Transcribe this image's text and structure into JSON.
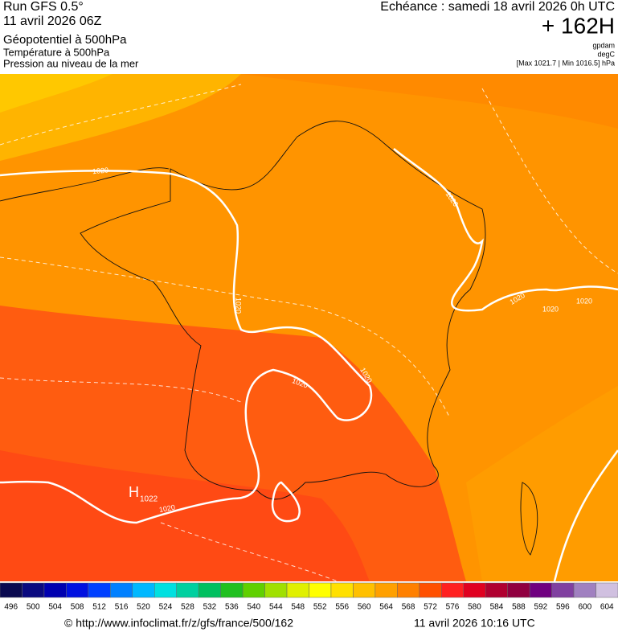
{
  "header": {
    "run": "Run GFS 0.5°",
    "date": "11 avril 2026 06Z",
    "field1": "Géopotentiel à 500hPa",
    "field2": "Température à 500hPa",
    "field3": "Pression au niveau de la mer",
    "forecast": "Echéance : samedi 18 avril 2026 0h UTC",
    "lead": "+ 162H",
    "unit1": "gpdam",
    "unit2": "degC",
    "pressure_range": "[Max 1021.7 | Min 1016.5] hPa"
  },
  "map": {
    "isobar_labels": [
      "1020",
      "1020",
      "1020",
      "1020",
      "1020",
      "1020",
      "1020",
      "1020",
      "1020"
    ],
    "high": {
      "symbol": "H",
      "value": "1022"
    }
  },
  "colorbar": {
    "ticks": [
      496,
      500,
      504,
      508,
      512,
      516,
      520,
      524,
      528,
      532,
      536,
      540,
      544,
      548,
      552,
      556,
      560,
      564,
      568,
      572,
      576,
      580,
      584,
      588,
      592,
      596,
      600,
      604
    ],
    "colors": [
      "#0a0a50",
      "#0a0a80",
      "#0000b0",
      "#0010e0",
      "#0040ff",
      "#0080ff",
      "#00b8ff",
      "#00e0e0",
      "#00d0a0",
      "#00c060",
      "#20c020",
      "#60d000",
      "#a0e000",
      "#e0f000",
      "#ffff00",
      "#ffe000",
      "#ffc000",
      "#ffa000",
      "#ff8000",
      "#ff5000",
      "#ff2020",
      "#e00020",
      "#b00030",
      "#900040",
      "#700080",
      "#8040a0",
      "#a080c0",
      "#d0c0e0"
    ]
  },
  "footer": {
    "url": "© http://www.infoclimat.fr/z/gfs/france/500/162",
    "timestamp": "11 avril 2026 10:16 UTC"
  }
}
